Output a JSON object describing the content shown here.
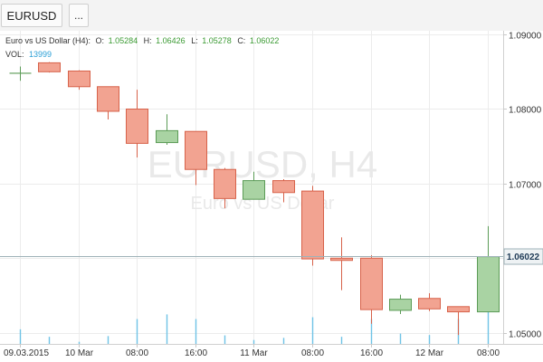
{
  "toolbar": {
    "symbol_label": "EURUSD",
    "more_label": "..."
  },
  "chart_data": {
    "type": "candlestick",
    "symbol": "EURUSD",
    "timeframe": "H4",
    "watermark_title": "EURUSD, H4",
    "watermark_subtitle": "Euro vs US Dollar",
    "legend": {
      "title": "Euro vs US Dollar (H4):",
      "open_label": "O:",
      "open": "1.05284",
      "high_label": "H:",
      "high": "1.06426",
      "low_label": "L:",
      "low": "1.05278",
      "close_label": "C:",
      "close": "1.06022",
      "volume_label": "VOL:",
      "volume": "13999"
    },
    "y_axis": {
      "min": 1.0485,
      "max": 1.0905,
      "ticks": [
        "1.09000",
        "1.08000",
        "1.07000",
        "1.06000",
        "1.05000"
      ]
    },
    "current_price_label": "1.06022",
    "current_price": 1.06022,
    "x_tick_labels": [
      "09.03.2015",
      "10 Mar",
      "08:00",
      "16:00",
      "11 Mar",
      "08:00",
      "16:00",
      "12 Mar",
      "08:00"
    ],
    "x_tick_candle_index": [
      0,
      2,
      4,
      6,
      8,
      10,
      12,
      14,
      16
    ],
    "volume_max": 14000,
    "candles": [
      {
        "o": 1.0848,
        "h": 1.0857,
        "l": 1.0838,
        "c": 1.0848,
        "v": 4100
      },
      {
        "o": 1.0862,
        "h": 1.0863,
        "l": 1.0849,
        "c": 1.085,
        "v": 2000
      },
      {
        "o": 1.0851,
        "h": 1.0852,
        "l": 1.0826,
        "c": 1.083,
        "v": 600
      },
      {
        "o": 1.083,
        "h": 1.083,
        "l": 1.0786,
        "c": 1.0797,
        "v": 2200
      },
      {
        "o": 1.08,
        "h": 1.0826,
        "l": 1.0735,
        "c": 1.0754,
        "v": 7000
      },
      {
        "o": 1.0755,
        "h": 1.0793,
        "l": 1.0752,
        "c": 1.0771,
        "v": 8300
      },
      {
        "o": 1.077,
        "h": 1.077,
        "l": 1.0698,
        "c": 1.0719,
        "v": 7000
      },
      {
        "o": 1.0719,
        "h": 1.0721,
        "l": 1.0667,
        "c": 1.068,
        "v": 2400
      },
      {
        "o": 1.0679,
        "h": 1.0716,
        "l": 1.0679,
        "c": 1.0704,
        "v": 1100
      },
      {
        "o": 1.0704,
        "h": 1.0706,
        "l": 1.0675,
        "c": 1.0688,
        "v": 1700
      },
      {
        "o": 1.069,
        "h": 1.0697,
        "l": 1.059,
        "c": 1.0599,
        "v": 7500
      },
      {
        "o": 1.06,
        "h": 1.0628,
        "l": 1.0557,
        "c": 1.0597,
        "v": 2000
      },
      {
        "o": 1.06,
        "h": 1.0604,
        "l": 1.0512,
        "c": 1.0531,
        "v": 7000
      },
      {
        "o": 1.053,
        "h": 1.0551,
        "l": 1.0525,
        "c": 1.0545,
        "v": 2900
      },
      {
        "o": 1.0546,
        "h": 1.0553,
        "l": 1.0529,
        "c": 1.0532,
        "v": 2500
      },
      {
        "o": 1.0535,
        "h": 1.0535,
        "l": 1.0497,
        "c": 1.0528,
        "v": 7000
      },
      {
        "o": 1.0528,
        "h": 1.0643,
        "l": 1.0528,
        "c": 1.0602,
        "v": 14000
      }
    ]
  },
  "colors": {
    "bull_fill": "#a9d3a3",
    "bull_stroke": "#5b9b56",
    "bear_fill": "#f2a391",
    "bear_stroke": "#d7624a",
    "volume": "#6fc3e6",
    "grid": "#ececec",
    "price_line": "#9fb2b8",
    "legend_value": "#3a9a32",
    "volume_value": "#2b9fd6"
  }
}
